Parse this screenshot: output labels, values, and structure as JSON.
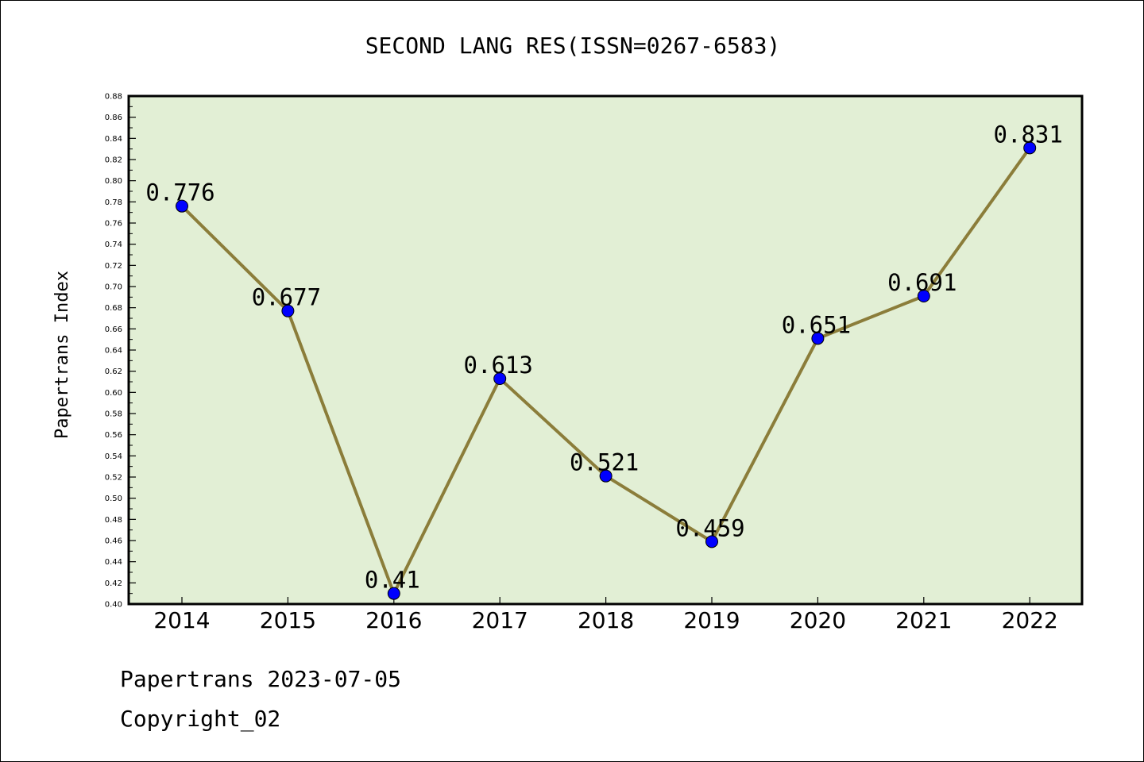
{
  "chart_data": {
    "type": "line",
    "title": "SECOND LANG RES(ISSN=0267-6583)",
    "xlabel": "",
    "ylabel": "Papertrans Index",
    "categories": [
      "2014",
      "2015",
      "2016",
      "2017",
      "2018",
      "2019",
      "2020",
      "2021",
      "2022"
    ],
    "values": [
      0.776,
      0.677,
      0.41,
      0.613,
      0.521,
      0.459,
      0.651,
      0.691,
      0.831
    ],
    "data_labels": [
      "0.776",
      "0.677",
      "0.41",
      "0.613",
      "0.521",
      "0.459",
      "0.651",
      "0.691",
      "0.831"
    ],
    "ylim": [
      0.4,
      0.88
    ],
    "yticks": [
      "0.40",
      "0.42",
      "0.44",
      "0.46",
      "0.48",
      "0.50",
      "0.52",
      "0.54",
      "0.56",
      "0.58",
      "0.60",
      "0.62",
      "0.64",
      "0.66",
      "0.68",
      "0.70",
      "0.72",
      "0.74",
      "0.76",
      "0.78",
      "0.80",
      "0.82",
      "0.84",
      "0.86",
      "0.88"
    ],
    "grid": false,
    "colors": {
      "plot_background": "#e2efd5",
      "line": "#8b7d3a",
      "marker": "#0000ff"
    }
  },
  "footer": {
    "line1": "Papertrans 2023-07-05",
    "line2": "Copyright_02"
  }
}
